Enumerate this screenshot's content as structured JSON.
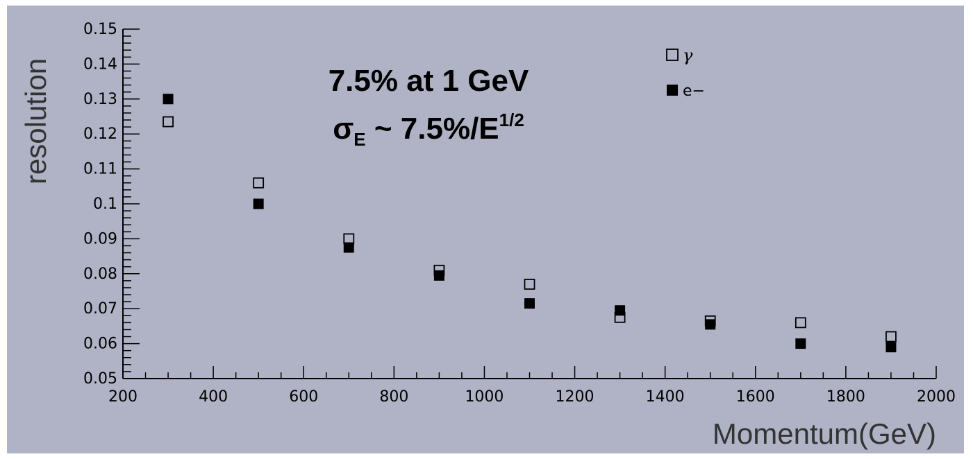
{
  "chart_data": {
    "type": "scatter",
    "xlabel": "Momentum(GeV)",
    "ylabel": "resolution",
    "xlim": [
      200,
      2000
    ],
    "ylim": [
      0.05,
      0.15
    ],
    "x_ticks": [
      200,
      400,
      600,
      800,
      1000,
      1200,
      1400,
      1600,
      1800,
      2000
    ],
    "x_tick_labels": [
      "200",
      "400",
      "600",
      "800",
      "1000",
      "1200",
      "1400",
      "1600",
      "1800",
      "2000"
    ],
    "y_ticks": [
      0.05,
      0.06,
      0.07,
      0.08,
      0.09,
      0.1,
      0.11,
      0.12,
      0.13,
      0.14,
      0.15
    ],
    "y_tick_labels": [
      "0.05",
      "0.06",
      "0.07",
      "0.08",
      "0.09",
      "0.1",
      "0.11",
      "0.12",
      "0.13",
      "0.14",
      "0.15"
    ],
    "grid": false,
    "legend_position": "top-right",
    "annotations": {
      "line1": "7.5% at 1 GeV",
      "line2_main": "σ",
      "line2_sub": "E",
      "line2_mid": " ~ 7.5%/E",
      "line2_sup": "1/2"
    },
    "series": [
      {
        "name": "γ",
        "marker": "open-square",
        "x": [
          300,
          500,
          700,
          900,
          1100,
          1300,
          1500,
          1700,
          1900
        ],
        "y": [
          0.1235,
          0.106,
          0.09,
          0.081,
          0.077,
          0.0675,
          0.0665,
          0.066,
          0.062
        ]
      },
      {
        "name": "e−",
        "marker": "filled-square",
        "x": [
          300,
          500,
          700,
          900,
          1100,
          1300,
          1500,
          1700,
          1900
        ],
        "y": [
          0.13,
          0.1,
          0.0875,
          0.0795,
          0.0715,
          0.0695,
          0.0655,
          0.06,
          0.059
        ]
      }
    ]
  },
  "colors": {
    "background": "#b0b3c5",
    "outer": "#ffffff",
    "ink": "#000000"
  }
}
